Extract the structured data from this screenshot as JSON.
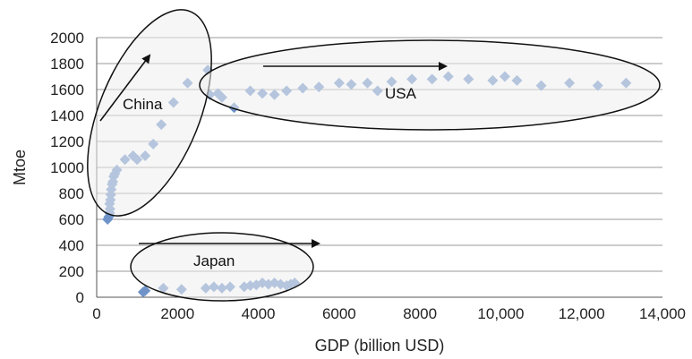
{
  "chart_data": {
    "type": "scatter",
    "xlabel": "GDP (billion USD)",
    "ylabel": "Mtoe",
    "xlim": [
      0,
      14000
    ],
    "ylim": [
      0,
      2000
    ],
    "x_ticks": [
      "0",
      "2000",
      "4000",
      "6000",
      "8000",
      "10,000",
      "12,000",
      "14,000"
    ],
    "y_ticks": [
      "0",
      "200",
      "400",
      "600",
      "800",
      "1000",
      "1200",
      "1400",
      "1600",
      "1800",
      "2000"
    ],
    "grid": "horizontal",
    "marker": "diamond",
    "marker_color": "#6f93c8",
    "series": [
      {
        "name": "China",
        "points": [
          [
            270,
            600
          ],
          [
            300,
            620
          ],
          [
            320,
            650
          ],
          [
            330,
            680
          ],
          [
            320,
            720
          ],
          [
            340,
            750
          ],
          [
            350,
            790
          ],
          [
            360,
            830
          ],
          [
            380,
            870
          ],
          [
            400,
            890
          ],
          [
            420,
            930
          ],
          [
            450,
            950
          ],
          [
            500,
            980
          ],
          [
            700,
            1060
          ],
          [
            900,
            1090
          ],
          [
            1000,
            1060
          ],
          [
            1200,
            1090
          ],
          [
            1400,
            1180
          ],
          [
            1600,
            1330
          ],
          [
            1900,
            1500
          ],
          [
            2250,
            1650
          ],
          [
            2750,
            1750
          ]
        ]
      },
      {
        "name": "USA",
        "points": [
          [
            2800,
            1560
          ],
          [
            3000,
            1570
          ],
          [
            3100,
            1540
          ],
          [
            3400,
            1460
          ],
          [
            3800,
            1590
          ],
          [
            4100,
            1570
          ],
          [
            4400,
            1560
          ],
          [
            4700,
            1590
          ],
          [
            5100,
            1610
          ],
          [
            5500,
            1620
          ],
          [
            6000,
            1650
          ],
          [
            6300,
            1640
          ],
          [
            6700,
            1650
          ],
          [
            6950,
            1590
          ],
          [
            7300,
            1660
          ],
          [
            7800,
            1680
          ],
          [
            8300,
            1680
          ],
          [
            8700,
            1700
          ],
          [
            9200,
            1680
          ],
          [
            9800,
            1670
          ],
          [
            10100,
            1700
          ],
          [
            10400,
            1670
          ],
          [
            11000,
            1630
          ],
          [
            11700,
            1650
          ],
          [
            12400,
            1630
          ],
          [
            13100,
            1650
          ]
        ]
      },
      {
        "name": "Japan",
        "points": [
          [
            1150,
            40
          ],
          [
            1200,
            50
          ],
          [
            1650,
            70
          ],
          [
            2100,
            60
          ],
          [
            2700,
            70
          ],
          [
            2900,
            80
          ],
          [
            3100,
            70
          ],
          [
            3300,
            80
          ],
          [
            3650,
            80
          ],
          [
            3800,
            90
          ],
          [
            3950,
            95
          ],
          [
            4100,
            110
          ],
          [
            4250,
            100
          ],
          [
            4400,
            110
          ],
          [
            4550,
            100
          ],
          [
            4700,
            90
          ],
          [
            4800,
            100
          ],
          [
            4900,
            110
          ]
        ]
      }
    ],
    "annotations": [
      {
        "label": "China",
        "shape": "ellipse",
        "arrow": "up-right"
      },
      {
        "label": "USA",
        "shape": "ellipse",
        "arrow": "right"
      },
      {
        "label": "Japan",
        "shape": "ellipse",
        "arrow": "right"
      }
    ]
  }
}
